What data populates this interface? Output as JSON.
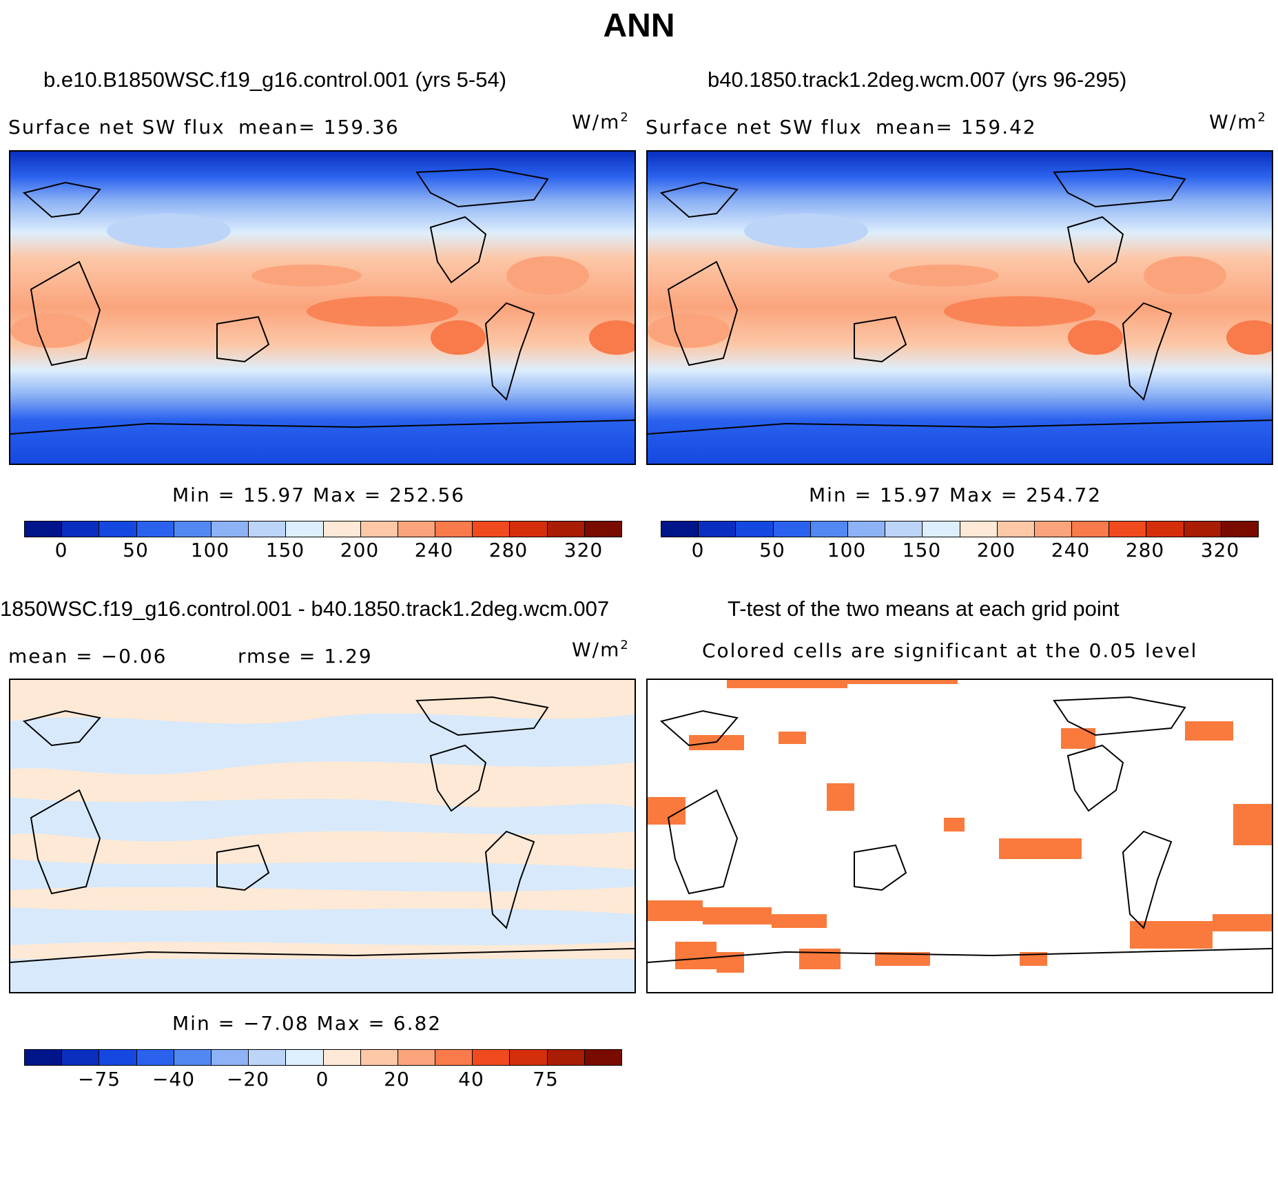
{
  "figure": {
    "title": "ANN"
  },
  "panel1": {
    "title": "b.e10.B1850WSC.f19_g16.control.001 (yrs 5-54)",
    "variable": "Surface net SW flux",
    "mean_text": "mean= 159.36",
    "units": "W/m",
    "units_exp": "2",
    "minmax": "Min =   15.97 Max = 252.56"
  },
  "panel2": {
    "title": "b40.1850.track1.2deg.wcm.007 (yrs 96-295)",
    "variable": "Surface net SW flux",
    "mean_text": "mean= 159.42",
    "units": "W/m",
    "units_exp": "2",
    "minmax": "Min =   15.97 Max = 254.72"
  },
  "panel3": {
    "title": "1850WSC.f19_g16.control.001 - b40.1850.track1.2deg.wcm.007",
    "mean_text": "mean =   −0.06",
    "rmse_text": "rmse =    1.29",
    "units": "W/m",
    "units_exp": "2",
    "minmax": "Min =  −7.08 Max =    6.82"
  },
  "panel4": {
    "title": "T-test of the two means at each grid point",
    "subtitle": "Colored cells are significant at the 0.05 level"
  },
  "colorbar_abs": {
    "labels": [
      "0",
      "50",
      "100",
      "150",
      "200",
      "240",
      "280",
      "320"
    ],
    "colors": [
      "#00158a",
      "#0a2fc0",
      "#1448e0",
      "#2a62ee",
      "#5288f2",
      "#8db2f5",
      "#bcd4f8",
      "#ddeefc",
      "#fde9d6",
      "#fcc8a8",
      "#fba47c",
      "#f97a4a",
      "#f04a1f",
      "#d42e0b",
      "#a81d04",
      "#7a0b00"
    ]
  },
  "colorbar_diff": {
    "labels": [
      "−75",
      "−40",
      "−20",
      "0",
      "20",
      "40",
      "75"
    ],
    "colors": [
      "#00158a",
      "#0a2fc0",
      "#1448e0",
      "#2a62ee",
      "#5288f2",
      "#8db2f5",
      "#bcd4f8",
      "#ddeefc",
      "#fde9d6",
      "#fcc8a8",
      "#fba47c",
      "#f97a4a",
      "#f04a1f",
      "#d42e0b",
      "#a81d04",
      "#7a0b00"
    ]
  },
  "colors": {
    "signif": "#f97a3c",
    "diff_neg": "#d7e9fb",
    "diff_pos": "#fde9d6"
  }
}
